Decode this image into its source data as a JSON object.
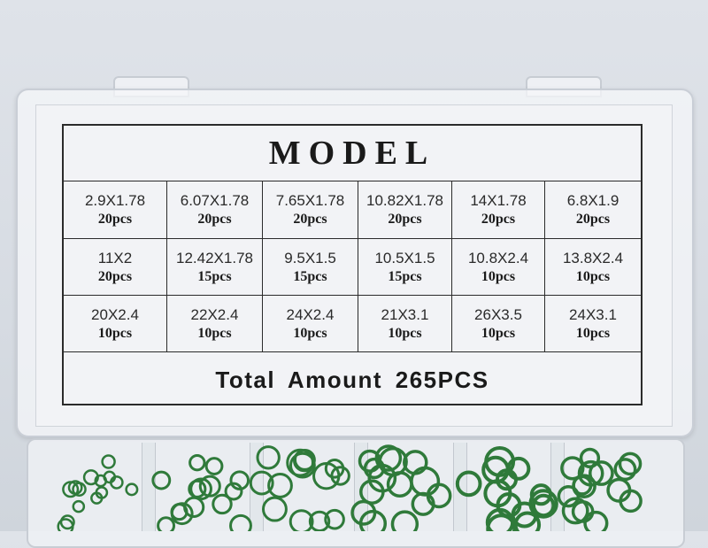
{
  "label": {
    "title": "MODEL",
    "rows": [
      [
        {
          "size": "2.9X1.78",
          "qty": "20pcs"
        },
        {
          "size": "6.07X1.78",
          "qty": "20pcs"
        },
        {
          "size": "7.65X1.78",
          "qty": "20pcs"
        },
        {
          "size": "10.82X1.78",
          "qty": "20pcs"
        },
        {
          "size": "14X1.78",
          "qty": "20pcs"
        },
        {
          "size": "6.8X1.9",
          "qty": "20pcs"
        }
      ],
      [
        {
          "size": "11X2",
          "qty": "20pcs"
        },
        {
          "size": "12.42X1.78",
          "qty": "15pcs"
        },
        {
          "size": "9.5X1.5",
          "qty": "15pcs"
        },
        {
          "size": "10.5X1.5",
          "qty": "15pcs"
        },
        {
          "size": "10.8X2.4",
          "qty": "10pcs"
        },
        {
          "size": "13.8X2.4",
          "qty": "10pcs"
        }
      ],
      [
        {
          "size": "20X2.4",
          "qty": "10pcs"
        },
        {
          "size": "22X2.4",
          "qty": "10pcs"
        },
        {
          "size": "24X2.4",
          "qty": "10pcs"
        },
        {
          "size": "21X3.1",
          "qty": "10pcs"
        },
        {
          "size": "26X3.5",
          "qty": "10pcs"
        },
        {
          "size": "24X3.1",
          "qty": "10pcs"
        }
      ]
    ],
    "total": "Total Amount 265PCS"
  },
  "colors": {
    "ring_green": "#2f7a3a",
    "background": "#d8dde3"
  }
}
